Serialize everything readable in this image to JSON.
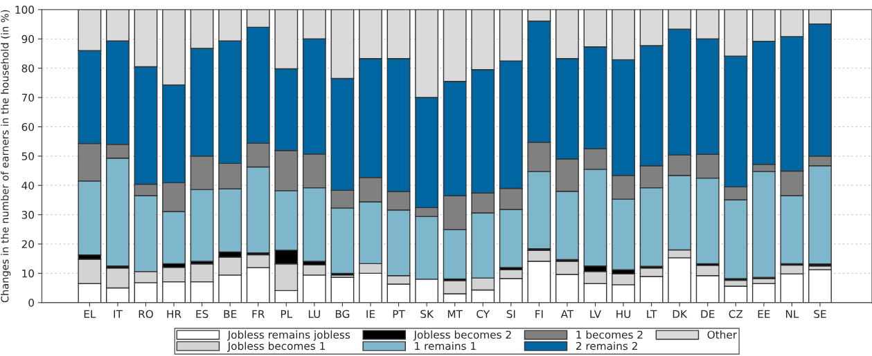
{
  "chart_data": {
    "type": "bar",
    "stacked": true,
    "ylabel": "Changes in the number of earners in the household (in %)",
    "categories": [
      "EL",
      "IT",
      "RO",
      "HR",
      "ES",
      "BE",
      "FR",
      "PL",
      "LU",
      "BG",
      "IE",
      "PT",
      "SK",
      "MT",
      "CY",
      "SI",
      "FI",
      "AT",
      "LV",
      "HU",
      "LT",
      "DK",
      "DE",
      "CZ",
      "EE",
      "NL",
      "SE"
    ],
    "series": [
      {
        "name": "Jobless remains jobless",
        "color": "#ffffff",
        "values": [
          6.5,
          5.0,
          6.8,
          7.1,
          7.1,
          9.4,
          11.9,
          4.1,
          9.4,
          8.6,
          10.0,
          6.3,
          8.0,
          3.0,
          4.3,
          8.2,
          14.1,
          9.6,
          6.5,
          6.1,
          8.9,
          15.3,
          9.2,
          5.6,
          6.5,
          9.8,
          11.2
        ]
      },
      {
        "name": "Jobless becomes 1",
        "color": "#d3d3d3",
        "values": [
          8.3,
          6.8,
          3.8,
          4.9,
          6.1,
          6.1,
          4.4,
          9.1,
          3.5,
          0.8,
          3.3,
          2.9,
          null,
          4.5,
          4.1,
          3.0,
          3.7,
          4.5,
          4.1,
          3.7,
          2.9,
          2.7,
          3.5,
          2.0,
          1.7,
          3.0,
          1.3
        ]
      },
      {
        "name": "Jobless becomes 2",
        "color": "#000000",
        "values": [
          1.5,
          0.7,
          null,
          1.3,
          0.9,
          1.8,
          0.7,
          4.7,
          1.2,
          0.6,
          null,
          null,
          null,
          0.6,
          null,
          0.8,
          0.6,
          0.6,
          1.9,
          1.4,
          0.6,
          null,
          0.6,
          0.6,
          0.4,
          0.5,
          0.7
        ]
      },
      {
        "name": "1 remains 1",
        "color": "#7eb6cc",
        "values": [
          25.2,
          36.8,
          25.9,
          17.8,
          24.5,
          21.5,
          29.3,
          20.3,
          25.1,
          22.3,
          21.1,
          22.4,
          21.4,
          16.8,
          22.2,
          19.8,
          26.3,
          23.3,
          33.0,
          24.1,
          26.8,
          25.4,
          29.2,
          26.9,
          36.1,
          23.2,
          33.5
        ]
      },
      {
        "name": "1 becomes 2",
        "color": "#808080",
        "values": [
          12.8,
          4.7,
          3.9,
          9.8,
          11.4,
          8.7,
          8.1,
          13.7,
          11.5,
          6.0,
          8.3,
          6.3,
          3.0,
          11.6,
          6.8,
          7.2,
          10.0,
          11.0,
          7.0,
          8.1,
          7.5,
          7.0,
          8.1,
          4.4,
          2.5,
          8.4,
          3.3
        ]
      },
      {
        "name": "2 remains 2",
        "color": "#0066a1",
        "values": [
          31.7,
          35.3,
          40.1,
          33.4,
          36.8,
          41.8,
          39.6,
          27.9,
          39.3,
          38.2,
          40.6,
          45.4,
          37.6,
          39.0,
          42.1,
          43.5,
          41.4,
          34.3,
          34.8,
          39.5,
          41.0,
          42.9,
          39.4,
          44.6,
          42.0,
          45.9,
          45.1
        ]
      },
      {
        "name": "Other",
        "color": "#dadada",
        "values": [
          14.0,
          10.7,
          19.5,
          25.7,
          13.2,
          10.7,
          6.0,
          20.2,
          10.0,
          23.5,
          16.7,
          16.7,
          30.0,
          24.5,
          20.5,
          17.5,
          3.9,
          16.7,
          12.7,
          17.1,
          12.3,
          6.7,
          10.0,
          15.9,
          10.8,
          9.2,
          4.9
        ]
      }
    ],
    "ylim": [
      0,
      100
    ],
    "yticks": [
      0,
      10,
      20,
      30,
      40,
      50,
      60,
      70,
      80,
      90,
      100
    ],
    "grid": "y",
    "legend": "bottom"
  }
}
